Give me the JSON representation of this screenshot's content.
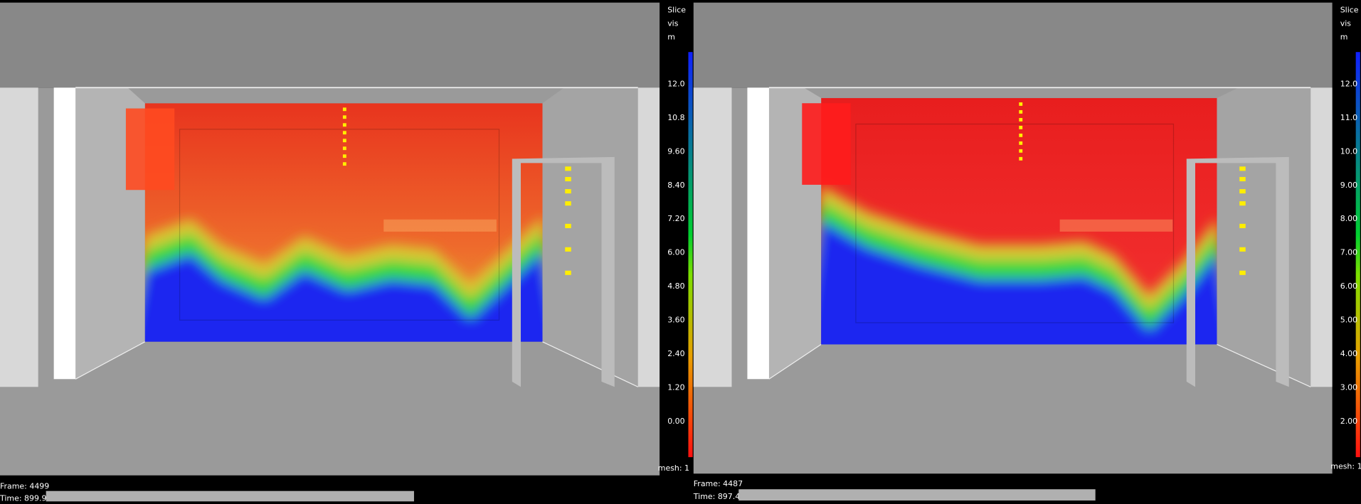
{
  "panels": [
    {
      "colorbar": {
        "header": [
          "Slice",
          "vis",
          "m"
        ],
        "ticks": [
          "12.0",
          "10.8",
          "9.60",
          "8.40",
          "7.20",
          "6.00",
          "4.80",
          "3.60",
          "2.40",
          "1.20",
          "0.00"
        ],
        "mesh": "mesh: 1"
      },
      "frame": "Frame: 4499",
      "time": "Time: 899.9"
    },
    {
      "colorbar": {
        "header": [
          "Slice",
          "vis",
          "m"
        ],
        "ticks": [
          "12.0",
          "11.0",
          "10.0",
          "9.00",
          "8.00",
          "7.00",
          "6.00",
          "5.00",
          "4.00",
          "3.00",
          "2.00"
        ],
        "mesh": "mesh: 1"
      },
      "frame": "Frame: 4487",
      "time": "Time: 897.4"
    }
  ]
}
